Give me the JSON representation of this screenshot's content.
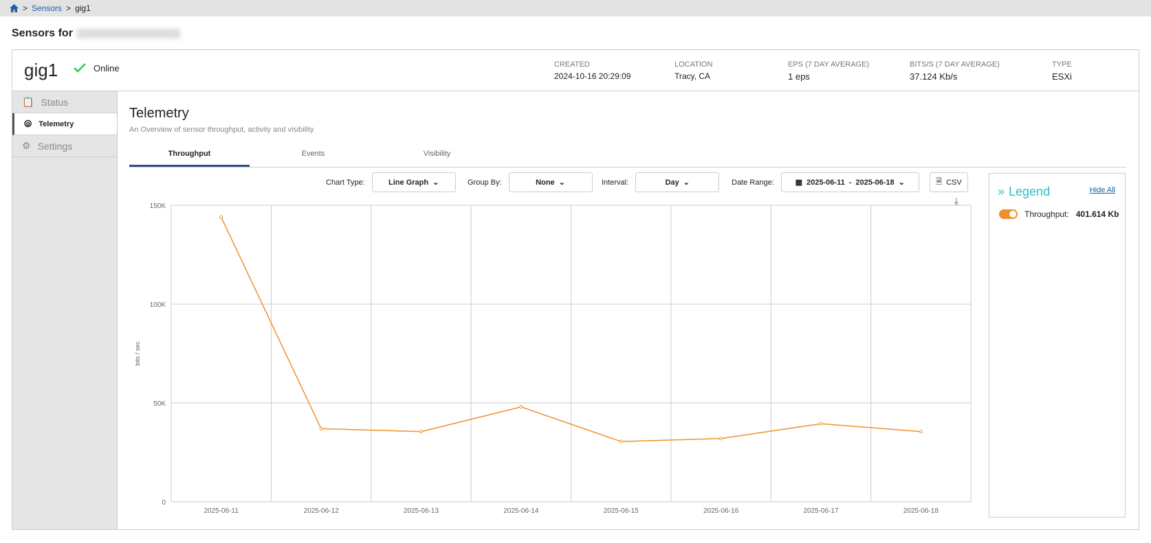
{
  "breadcrumb": {
    "home": "home-icon",
    "sensors": "Sensors",
    "current": "gig1",
    "sep": ">"
  },
  "page": {
    "title": "Sensors for"
  },
  "sensor": {
    "name": "gig1",
    "status": "Online",
    "meta": [
      {
        "label": "CREATED",
        "value": "2024-10-16 20:29:09"
      },
      {
        "label": "LOCATION",
        "value": "Tracy, CA"
      },
      {
        "label": "EPS (7 DAY AVERAGE)",
        "value": "1 eps"
      },
      {
        "label": "BITS/S (7 DAY AVERAGE)",
        "value": "37.124 Kb/s"
      },
      {
        "label": "TYPE",
        "value": "ESXi"
      }
    ]
  },
  "sidebar": {
    "items": [
      {
        "label": "Status"
      },
      {
        "label": "Telemetry"
      },
      {
        "label": "Settings"
      }
    ]
  },
  "telemetry": {
    "title": "Telemetry",
    "subtitle": "An Overview of sensor throughput, activity and visibility",
    "tabs": [
      {
        "label": "Throughput"
      },
      {
        "label": "Events"
      },
      {
        "label": "Visibility"
      }
    ],
    "controls": {
      "chart_type_label": "Chart Type:",
      "chart_type": "Line Graph",
      "group_by_label": "Group By:",
      "group_by": "None",
      "interval_label": "Interval:",
      "interval": "Day",
      "date_range_label": "Date Range:",
      "date_from": "2025-06-11",
      "date_sep": "-",
      "date_to": "2025-06-18",
      "csv": "CSV"
    }
  },
  "legend": {
    "title": "Legend",
    "hide_all": "Hide All",
    "items": [
      {
        "label": "Throughput:",
        "value": "401.614 Kb",
        "enabled": true
      }
    ]
  },
  "colors": {
    "line": "#f0902a",
    "accent": "#28c1c9"
  },
  "chart_data": {
    "type": "line",
    "ylabel": "bits / sec",
    "ylim": [
      0,
      150000
    ],
    "yticks": [
      {
        "v": 0,
        "label": "0"
      },
      {
        "v": 50000,
        "label": "50K"
      },
      {
        "v": 100000,
        "label": "100K"
      },
      {
        "v": 150000,
        "label": "150K"
      }
    ],
    "categories": [
      "2025-06-11",
      "2025-06-12",
      "2025-06-13",
      "2025-06-14",
      "2025-06-15",
      "2025-06-16",
      "2025-06-17",
      "2025-06-18"
    ],
    "series": [
      {
        "name": "Throughput",
        "values": [
          144000,
          37000,
          35500,
          48000,
          30500,
          32000,
          39500,
          35500
        ]
      }
    ]
  }
}
